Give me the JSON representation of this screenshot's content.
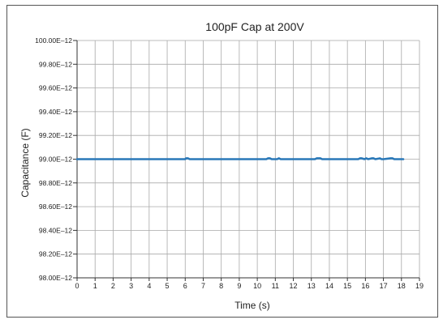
{
  "chart_data": {
    "type": "line",
    "title": "100pF Cap at 200V",
    "xlabel": "Time (s)",
    "ylabel": "Capacitance (F)",
    "xlim": [
      0,
      19
    ],
    "ylim": [
      98.0,
      100.0
    ],
    "x_ticks": [
      0,
      1,
      2,
      3,
      4,
      5,
      6,
      7,
      8,
      9,
      10,
      11,
      12,
      13,
      14,
      15,
      16,
      17,
      18,
      19
    ],
    "y_ticks": [
      98.0,
      98.2,
      98.4,
      98.6,
      98.8,
      99.0,
      99.2,
      99.4,
      99.6,
      99.8,
      100.0
    ],
    "y_tick_labels": [
      "98.00E–12",
      "98.20E–12",
      "98.40E–12",
      "98.60E–12",
      "98.80E–12",
      "99.00E–12",
      "99.20E–12",
      "99.40E–12",
      "99.60E–12",
      "99.80E–12",
      "100.00E–12"
    ],
    "grid": true,
    "legend": "none",
    "colors": {
      "series": "#2a78b8",
      "grid": "#a9a9a9",
      "axis": "#333333"
    },
    "series": [
      {
        "x": [
          0,
          6.0,
          6.05,
          6.15,
          6.25,
          6.35,
          10.5,
          10.6,
          10.7,
          10.8,
          11.1,
          11.2,
          11.3,
          13.2,
          13.3,
          13.4,
          13.5,
          13.6,
          15.6,
          15.7,
          15.8,
          15.95,
          16.05,
          16.15,
          16.35,
          16.45,
          16.55,
          16.8,
          16.9,
          17.0,
          17.4,
          17.5,
          17.6,
          18.1
        ],
        "values": [
          99.0,
          99.0,
          99.007,
          99.007,
          99.0,
          99.0,
          99.0,
          99.007,
          99.007,
          99.0,
          99.0,
          99.007,
          99.0,
          99.0,
          99.007,
          99.007,
          99.007,
          99.0,
          99.0,
          99.007,
          99.007,
          99.0,
          99.007,
          99.0,
          99.007,
          99.007,
          99.0,
          99.007,
          99.0,
          99.0,
          99.007,
          99.007,
          99.0,
          99.0
        ]
      }
    ]
  }
}
